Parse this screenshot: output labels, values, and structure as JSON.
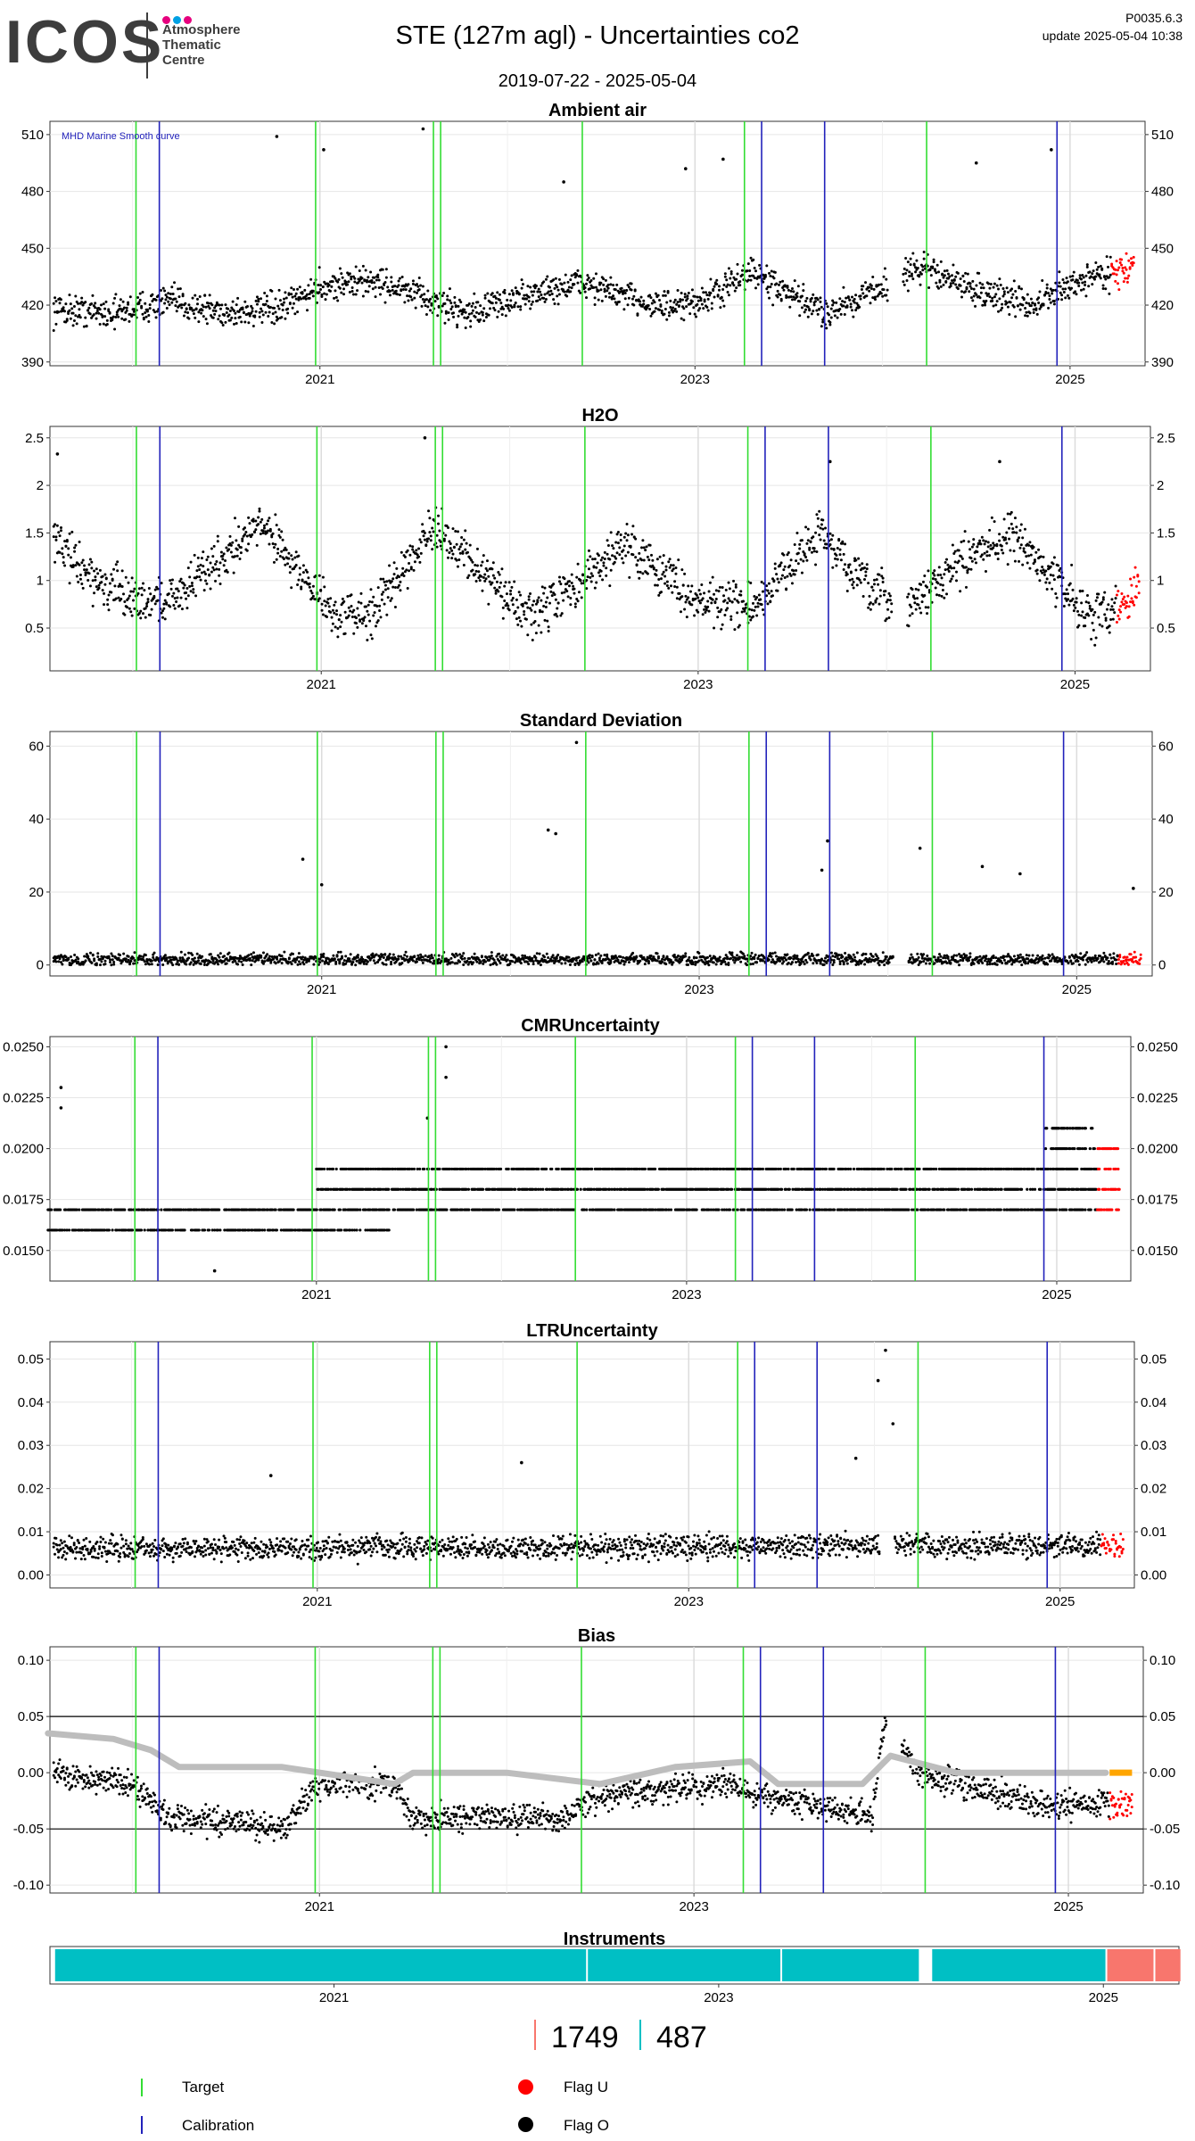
{
  "header": {
    "logo": "ICOS",
    "logo_sub": [
      "Atmosphere",
      "Thematic",
      "Centre"
    ],
    "title": "STE  (127m agl) - Uncertainties co2",
    "date_range": "2019-07-22 - 2025-05-04",
    "code": "P0035.6.3",
    "update": "update  2025-05-04 10:38"
  },
  "colors": {
    "target": "#33dd33",
    "calibration": "#2222bb",
    "flag_u": "#ff0000",
    "flag_o": "#000000",
    "bias_smooth": "#bdbdbd",
    "bias_recent": "#ffa500",
    "instrument_a": "#00bfc4",
    "instrument_b": "#f8766d",
    "logo_dots": [
      "#e6007e",
      "#00a0e3",
      "#e6007e"
    ]
  },
  "events": {
    "target_dates": [
      "2020-01-07",
      "2020-12-22",
      "2021-08-08",
      "2021-08-22",
      "2022-05-24",
      "2023-04-05",
      "2024-03-25"
    ],
    "calibration_dates": [
      "2020-02-22",
      "2023-05-08",
      "2023-09-09",
      "2024-12-05"
    ]
  },
  "chart_data": [
    {
      "type": "scatter",
      "title": "Ambient air",
      "annotation": "MHD Marine Smooth curve",
      "x_range": [
        "2019-07-22",
        "2025-05-04"
      ],
      "x_ticks": [
        "2021",
        "2023",
        "2025"
      ],
      "ylim": [
        388,
        517
      ],
      "y_ticks": [
        390,
        420,
        450,
        480,
        510
      ],
      "grid": true,
      "profile": [
        [
          2019.55,
          418
        ],
        [
          2019.9,
          416
        ],
        [
          2020.2,
          422
        ],
        [
          2020.5,
          416
        ],
        [
          2020.8,
          418
        ],
        [
          2021.0,
          430
        ],
        [
          2021.3,
          433
        ],
        [
          2021.6,
          422
        ],
        [
          2021.8,
          416
        ],
        [
          2022.1,
          425
        ],
        [
          2022.4,
          432
        ],
        [
          2022.6,
          425
        ],
        [
          2022.9,
          418
        ],
        [
          2023.1,
          425
        ],
        [
          2023.3,
          438
        ],
        [
          2023.5,
          425
        ],
        [
          2023.7,
          416
        ],
        [
          2024.0,
          430
        ],
        [
          2024.2,
          440
        ],
        [
          2024.5,
          428
        ],
        [
          2024.8,
          420
        ],
        [
          2025.1,
          435
        ],
        [
          2025.34,
          440
        ]
      ],
      "spread": 12,
      "recent_flagged": [
        2025.22,
        2025.34
      ],
      "outliers": [
        [
          2020.77,
          509
        ],
        [
          2021.02,
          502
        ],
        [
          2021.55,
          513
        ],
        [
          2022.3,
          485
        ],
        [
          2022.95,
          492
        ],
        [
          2023.15,
          497
        ],
        [
          2024.5,
          495
        ],
        [
          2024.9,
          502
        ]
      ]
    },
    {
      "type": "scatter",
      "title": "H2O",
      "x_range": [
        "2019-07-22",
        "2025-05-04"
      ],
      "x_ticks": [
        "2021",
        "2023",
        "2025"
      ],
      "ylim": [
        0.05,
        2.62
      ],
      "y_ticks": [
        0.5,
        1.0,
        1.5,
        2.0,
        2.5
      ],
      "grid": true,
      "profile": [
        [
          2019.55,
          1.5
        ],
        [
          2019.8,
          1.0
        ],
        [
          2020.0,
          0.8
        ],
        [
          2020.2,
          0.8
        ],
        [
          2020.5,
          1.3
        ],
        [
          2020.7,
          1.6
        ],
        [
          2020.95,
          0.9
        ],
        [
          2021.1,
          0.6
        ],
        [
          2021.3,
          0.7
        ],
        [
          2021.55,
          1.5
        ],
        [
          2021.7,
          1.4
        ],
        [
          2021.9,
          1.0
        ],
        [
          2022.1,
          0.6
        ],
        [
          2022.4,
          1.0
        ],
        [
          2022.6,
          1.4
        ],
        [
          2022.8,
          1.1
        ],
        [
          2023.0,
          0.8
        ],
        [
          2023.3,
          0.7
        ],
        [
          2023.5,
          1.2
        ],
        [
          2023.65,
          1.5
        ],
        [
          2023.9,
          0.9
        ],
        [
          2024.1,
          0.7
        ],
        [
          2024.4,
          1.2
        ],
        [
          2024.65,
          1.5
        ],
        [
          2024.9,
          1.0
        ],
        [
          2025.1,
          0.6
        ],
        [
          2025.34,
          0.9
        ]
      ],
      "spread": 0.35,
      "recent_flagged": [
        2025.22,
        2025.34
      ],
      "outliers": [
        [
          2019.6,
          2.33
        ],
        [
          2021.55,
          2.5
        ],
        [
          2023.7,
          2.25
        ],
        [
          2024.6,
          2.25
        ]
      ]
    },
    {
      "type": "scatter",
      "title": "Standard Deviation",
      "x_range": [
        "2019-07-22",
        "2025-05-04"
      ],
      "x_ticks": [
        "2021",
        "2023",
        "2025"
      ],
      "ylim": [
        -3,
        64
      ],
      "y_ticks": [
        0,
        20,
        40,
        60
      ],
      "grid": true,
      "profile": [
        [
          2019.55,
          1.5
        ],
        [
          2025.34,
          1.5
        ]
      ],
      "spread": 2.5,
      "recent_flagged": [
        2025.22,
        2025.34
      ],
      "outliers": [
        [
          2020.9,
          29
        ],
        [
          2021.0,
          22
        ],
        [
          2022.2,
          37
        ],
        [
          2022.24,
          36
        ],
        [
          2022.35,
          61
        ],
        [
          2023.68,
          34
        ],
        [
          2023.65,
          26
        ],
        [
          2024.17,
          32
        ],
        [
          2024.5,
          27
        ],
        [
          2024.7,
          25
        ],
        [
          2025.3,
          21
        ]
      ]
    },
    {
      "type": "scatter",
      "title": "CMRUncertainty",
      "x_range": [
        "2019-07-22",
        "2025-05-04"
      ],
      "x_ticks": [
        "2021",
        "2023",
        "2025"
      ],
      "ylim": [
        0.0135,
        0.0255
      ],
      "y_ticks": [
        0.015,
        0.0175,
        0.02,
        0.0225,
        0.025
      ],
      "y_tick_labels": [
        "0.0150",
        "0.0175",
        "0.0200",
        "0.0225",
        "0.0250"
      ],
      "grid": true,
      "bands": [
        {
          "y": 0.016,
          "from": 2019.55,
          "to": 2021.4
        },
        {
          "y": 0.017,
          "from": 2019.55,
          "to": 2025.34
        },
        {
          "y": 0.018,
          "from": 2021.0,
          "to": 2025.34
        },
        {
          "y": 0.019,
          "from": 2021.0,
          "to": 2025.34
        },
        {
          "y": 0.02,
          "from": 2024.94,
          "to": 2025.34
        },
        {
          "y": 0.021,
          "from": 2024.94,
          "to": 2025.2
        }
      ],
      "recent_flagged": [
        2025.22,
        2025.34
      ],
      "outliers": [
        [
          2019.62,
          0.023
        ],
        [
          2019.62,
          0.022
        ],
        [
          2021.6,
          0.0215
        ],
        [
          2021.7,
          0.025
        ],
        [
          2021.7,
          0.0235
        ],
        [
          2020.45,
          0.014
        ]
      ]
    },
    {
      "type": "scatter",
      "title": "LTRUncertainty",
      "x_range": [
        "2019-07-22",
        "2025-05-04"
      ],
      "x_ticks": [
        "2021",
        "2023",
        "2025"
      ],
      "ylim": [
        -0.003,
        0.054
      ],
      "y_ticks": [
        0.0,
        0.01,
        0.02,
        0.03,
        0.04,
        0.05
      ],
      "y_tick_labels": [
        "0.00",
        "0.01",
        "0.02",
        "0.03",
        "0.04",
        "0.05"
      ],
      "grid": true,
      "profile": [
        [
          2019.55,
          0.006
        ],
        [
          2025.34,
          0.007
        ]
      ],
      "spread": 0.004,
      "recent_flagged": [
        2025.22,
        2025.34
      ],
      "outliers": [
        [
          2020.75,
          0.023
        ],
        [
          2022.1,
          0.026
        ],
        [
          2023.9,
          0.027
        ],
        [
          2024.02,
          0.045
        ],
        [
          2024.06,
          0.052
        ],
        [
          2024.1,
          0.035
        ]
      ]
    },
    {
      "type": "scatter",
      "title": "Bias",
      "x_range": [
        "2019-07-22",
        "2025-05-04"
      ],
      "x_ticks": [
        "2021",
        "2023",
        "2025"
      ],
      "ylim": [
        -0.107,
        0.112
      ],
      "y_ticks": [
        -0.1,
        -0.05,
        0.0,
        0.05,
        0.1
      ],
      "y_tick_labels": [
        "-0.10",
        "-0.05",
        "0.00",
        "0.05",
        "0.10"
      ],
      "grid": true,
      "reference_lines": [
        0.05,
        -0.05
      ],
      "profile": [
        [
          2019.55,
          0.0
        ],
        [
          2020.0,
          -0.01
        ],
        [
          2020.2,
          -0.04
        ],
        [
          2020.8,
          -0.05
        ],
        [
          2021.0,
          -0.01
        ],
        [
          2021.4,
          -0.01
        ],
        [
          2021.5,
          -0.04
        ],
        [
          2022.3,
          -0.04
        ],
        [
          2022.5,
          -0.02
        ],
        [
          2023.2,
          -0.01
        ],
        [
          2023.35,
          -0.02
        ],
        [
          2023.7,
          -0.03
        ],
        [
          2023.95,
          -0.04
        ],
        [
          2024.02,
          0.05
        ],
        [
          2024.2,
          0.0
        ],
        [
          2024.9,
          -0.03
        ],
        [
          2025.34,
          -0.025
        ]
      ],
      "spread": 0.018,
      "recent_flagged": [
        2025.22,
        2025.34
      ],
      "smooth": [
        [
          2019.55,
          0.035
        ],
        [
          2019.9,
          0.03
        ],
        [
          2020.1,
          0.02
        ],
        [
          2020.25,
          0.005
        ],
        [
          2020.8,
          0.005
        ],
        [
          2021.4,
          -0.01
        ],
        [
          2021.5,
          0.0
        ],
        [
          2022.0,
          0.0
        ],
        [
          2022.5,
          -0.01
        ],
        [
          2022.9,
          0.005
        ],
        [
          2023.3,
          0.01
        ],
        [
          2023.45,
          -0.01
        ],
        [
          2023.9,
          -0.01
        ],
        [
          2024.05,
          0.015
        ],
        [
          2024.4,
          0.0
        ],
        [
          2024.9,
          0.0
        ],
        [
          2025.2,
          0.0
        ]
      ],
      "recent_smooth": [
        2025.22,
        2025.34
      ]
    }
  ],
  "instruments": {
    "title": "Instruments",
    "x_ticks": [
      "2021",
      "2023",
      "2025"
    ],
    "segments": [
      {
        "from": 2019.55,
        "to": 2022.32,
        "color": "#00bfc4"
      },
      {
        "from": 2022.32,
        "to": 2023.33,
        "color": "#00bfc4"
      },
      {
        "from": 2023.33,
        "to": 2024.05,
        "color": "#00bfc4"
      },
      {
        "from": 2024.11,
        "to": 2025.02,
        "color": "#00bfc4"
      },
      {
        "from": 2025.02,
        "to": 2025.27,
        "color": "#f8766d"
      },
      {
        "from": 2025.27,
        "to": 2025.41,
        "color": "#f8766d"
      }
    ],
    "counts": [
      "1749",
      "487"
    ]
  },
  "legend": {
    "target": "Target",
    "calibration": "Calibration",
    "flag_u": "Flag U",
    "flag_o": "Flag O"
  }
}
